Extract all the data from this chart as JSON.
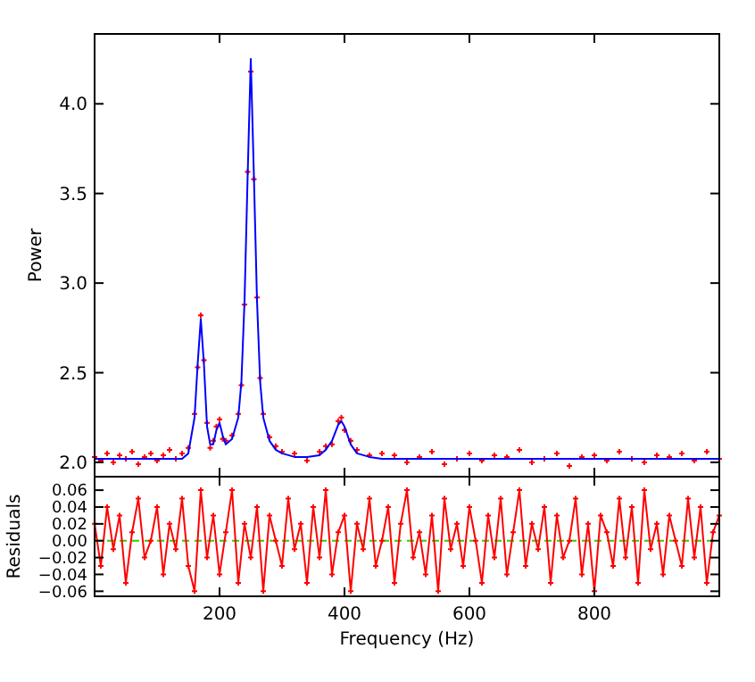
{
  "chart_data": [
    {
      "type": "scatter",
      "ylabel": "Power",
      "xlim": [
        0,
        1000
      ],
      "xticks": [
        {
          "value": 200,
          "label": null
        },
        {
          "value": 400,
          "label": null
        },
        {
          "value": 600,
          "label": null
        },
        {
          "value": 800,
          "label": null
        }
      ],
      "ylim": [
        1.92,
        4.39
      ],
      "yticks": [
        {
          "value": 2.0,
          "label": "2.0"
        },
        {
          "value": 2.5,
          "label": "2.5"
        },
        {
          "value": 3.0,
          "label": "3.0"
        },
        {
          "value": 3.5,
          "label": "3.5"
        },
        {
          "value": 4.0,
          "label": "4.0"
        }
      ],
      "tick_labels": "y",
      "grid": false,
      "marker": "cross",
      "x": [
        0,
        10,
        20,
        30,
        40,
        50,
        60,
        70,
        80,
        90,
        100,
        110,
        120,
        130,
        140,
        150,
        160,
        165,
        170,
        175,
        180,
        185,
        190,
        195,
        200,
        205,
        210,
        220,
        230,
        235,
        240,
        245,
        250,
        255,
        260,
        265,
        270,
        280,
        290,
        300,
        320,
        340,
        360,
        370,
        380,
        390,
        395,
        400,
        410,
        420,
        440,
        460,
        480,
        500,
        520,
        540,
        560,
        580,
        600,
        620,
        640,
        660,
        680,
        700,
        720,
        740,
        760,
        780,
        800,
        820,
        840,
        860,
        880,
        900,
        920,
        940,
        960,
        980,
        1000
      ],
      "series": [
        {
          "type": "scatter",
          "color": "#ff0000",
          "values": [
            2.03,
            2.01,
            2.05,
            2.0,
            2.04,
            2.02,
            2.06,
            1.99,
            2.03,
            2.05,
            2.01,
            2.04,
            2.07,
            2.02,
            2.05,
            2.08,
            2.27,
            2.53,
            2.82,
            2.57,
            2.22,
            2.08,
            2.12,
            2.2,
            2.24,
            2.13,
            2.12,
            2.15,
            2.27,
            2.43,
            2.88,
            3.62,
            4.18,
            3.58,
            2.92,
            2.47,
            2.27,
            2.14,
            2.09,
            2.06,
            2.05,
            2.01,
            2.06,
            2.09,
            2.1,
            2.23,
            2.25,
            2.18,
            2.12,
            2.07,
            2.04,
            2.05,
            2.04,
            2.0,
            2.03,
            2.06,
            1.99,
            2.02,
            2.05,
            2.01,
            2.04,
            2.03,
            2.07,
            2.0,
            2.02,
            2.05,
            1.98,
            2.03,
            2.04,
            2.01,
            2.06,
            2.02,
            2.0,
            2.04,
            2.03,
            2.05,
            2.01,
            2.06,
            2.02
          ]
        },
        {
          "type": "line",
          "color": "#0000ff",
          "line_style": "solid",
          "marker": "none",
          "values": [
            2.02,
            2.02,
            2.02,
            2.02,
            2.02,
            2.02,
            2.02,
            2.02,
            2.02,
            2.02,
            2.02,
            2.02,
            2.02,
            2.02,
            2.02,
            2.05,
            2.25,
            2.55,
            2.8,
            2.55,
            2.2,
            2.1,
            2.1,
            2.18,
            2.22,
            2.15,
            2.1,
            2.13,
            2.25,
            2.45,
            2.9,
            3.6,
            4.25,
            3.6,
            2.9,
            2.45,
            2.25,
            2.12,
            2.07,
            2.05,
            2.03,
            2.03,
            2.04,
            2.07,
            2.12,
            2.21,
            2.23,
            2.2,
            2.1,
            2.05,
            2.03,
            2.02,
            2.02,
            2.02,
            2.02,
            2.02,
            2.02,
            2.02,
            2.02,
            2.02,
            2.02,
            2.02,
            2.02,
            2.02,
            2.02,
            2.02,
            2.02,
            2.02,
            2.02,
            2.02,
            2.02,
            2.02,
            2.02,
            2.02,
            2.02,
            2.02,
            2.02,
            2.02,
            2.02
          ]
        }
      ]
    },
    {
      "type": "line",
      "xlabel": "Frequency (Hz)",
      "ylabel": "Residuals",
      "xlim": [
        0,
        1000
      ],
      "xticks": [
        200,
        400,
        600,
        800
      ],
      "ylim": [
        -0.066,
        0.076
      ],
      "yticks": [
        {
          "value": -0.06,
          "label": "−0.06"
        },
        {
          "value": -0.04,
          "label": "−0.04"
        },
        {
          "value": -0.02,
          "label": "−0.02"
        },
        {
          "value": 0,
          "label": "0.00"
        },
        {
          "value": 0.02,
          "label": "0.02"
        },
        {
          "value": 0.04,
          "label": "0.04"
        },
        {
          "value": 0.06,
          "label": "0.06"
        }
      ],
      "grid": false,
      "marker": "cross",
      "line_style": "solid",
      "ref_lines": [
        {
          "axis": "y",
          "value": 0,
          "color": "#33cc00",
          "line_style": "dashed"
        }
      ],
      "series": [
        {
          "color": "#ff0000",
          "x": [
            0,
            10,
            20,
            30,
            40,
            50,
            60,
            70,
            80,
            90,
            100,
            110,
            120,
            130,
            140,
            150,
            160,
            170,
            180,
            190,
            200,
            210,
            220,
            230,
            240,
            250,
            260,
            270,
            280,
            290,
            300,
            310,
            320,
            330,
            340,
            350,
            360,
            370,
            380,
            390,
            400,
            410,
            420,
            430,
            440,
            450,
            460,
            470,
            480,
            490,
            500,
            510,
            520,
            530,
            540,
            550,
            560,
            570,
            580,
            590,
            600,
            610,
            620,
            630,
            640,
            650,
            660,
            670,
            680,
            690,
            700,
            710,
            720,
            730,
            740,
            750,
            760,
            770,
            780,
            790,
            800,
            810,
            820,
            830,
            840,
            850,
            860,
            870,
            880,
            890,
            900,
            910,
            920,
            930,
            940,
            950,
            960,
            970,
            980,
            990,
            1000
          ],
          "values": [
            0.02,
            -0.03,
            0.04,
            -0.01,
            0.03,
            -0.05,
            0.01,
            0.05,
            -0.02,
            0.0,
            0.04,
            -0.04,
            0.02,
            -0.01,
            0.05,
            -0.03,
            -0.06,
            0.06,
            -0.02,
            0.03,
            -0.04,
            0.01,
            0.06,
            -0.05,
            0.02,
            -0.02,
            0.04,
            -0.06,
            0.03,
            0.0,
            -0.03,
            0.05,
            -0.01,
            0.02,
            -0.05,
            0.04,
            -0.02,
            0.06,
            -0.04,
            0.01,
            0.03,
            -0.06,
            0.02,
            -0.01,
            0.05,
            -0.03,
            0.0,
            0.04,
            -0.05,
            0.02,
            0.06,
            -0.02,
            0.01,
            -0.04,
            0.03,
            -0.06,
            0.05,
            -0.01,
            0.02,
            -0.03,
            0.04,
            0.0,
            -0.05,
            0.03,
            -0.02,
            0.05,
            -0.04,
            0.01,
            0.06,
            -0.03,
            0.02,
            -0.01,
            0.04,
            -0.05,
            0.03,
            -0.02,
            0.0,
            0.05,
            -0.04,
            0.02,
            -0.06,
            0.03,
            0.01,
            -0.03,
            0.05,
            -0.02,
            0.04,
            -0.05,
            0.06,
            -0.01,
            0.02,
            -0.04,
            0.03,
            0.0,
            -0.03,
            0.05,
            -0.02,
            0.04,
            -0.05,
            0.01,
            0.03
          ]
        }
      ]
    }
  ]
}
